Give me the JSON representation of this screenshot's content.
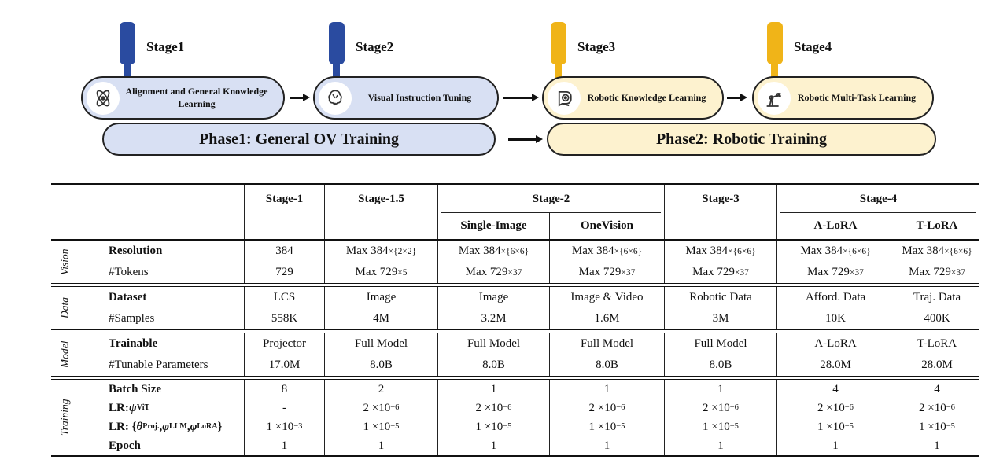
{
  "diagram": {
    "stages": [
      {
        "pin": "Stage1",
        "title": "Alignment and General Knowledge Learning",
        "icon": "atom-icon",
        "pin_color": "#2a4ba0",
        "fill": "#d8e0f3"
      },
      {
        "pin": "Stage2",
        "title": "Visual Instruction Tuning",
        "icon": "brain-icon",
        "pin_color": "#2a4ba0",
        "fill": "#d8e0f3"
      },
      {
        "pin": "Stage3",
        "title": "Robotic Knowledge Learning",
        "icon": "robot-head-icon",
        "pin_color": "#f0b418",
        "fill": "#fdf2cf"
      },
      {
        "pin": "Stage4",
        "title": "Robotic Multi-Task Learning",
        "icon": "robot-arm-icon",
        "pin_color": "#f0b418",
        "fill": "#fdf2cf"
      }
    ],
    "phases": [
      {
        "title": "Phase1: General OV Training",
        "fill": "#d8e0f3"
      },
      {
        "title": "Phase2: Robotic Training",
        "fill": "#fdf2cf"
      }
    ]
  },
  "table": {
    "header": {
      "top": [
        {
          "label": "Stage-1",
          "span": 1,
          "underline": false
        },
        {
          "label": "Stage-1.5",
          "span": 1,
          "underline": false
        },
        {
          "label": "Stage-2",
          "span": 2,
          "underline": true
        },
        {
          "label": "Stage-3",
          "span": 1,
          "underline": false
        },
        {
          "label": "Stage-4",
          "span": 2,
          "underline": true
        }
      ],
      "sub": [
        "",
        "",
        "Single-Image",
        "OneVision",
        "",
        "A-LoRA",
        "T-LoRA"
      ]
    },
    "groups": [
      {
        "name": "Vision",
        "rows": [
          {
            "label": "Resolution",
            "bold": true,
            "values": [
              "384",
              "Max 384⟦×{2×2}⟧",
              "Max 384⟦×{6×6}⟧",
              "Max 384⟦×{6×6}⟧",
              "Max 384⟦×{6×6}⟧",
              "Max 384⟦×{6×6}⟧",
              "Max 384⟦×{6×6}⟧"
            ]
          },
          {
            "label": "#Tokens",
            "bold": false,
            "values": [
              "729",
              "Max 729⟦×5⟧",
              "Max 729⟦×37⟧",
              "Max 729⟦×37⟧",
              "Max 729⟦×37⟧",
              "Max 729⟦×37⟧",
              "Max 729⟦×37⟧"
            ]
          }
        ]
      },
      {
        "name": "Data",
        "rows": [
          {
            "label": "Dataset",
            "bold": true,
            "values": [
              "LCS",
              "Image",
              "Image",
              "Image & Video",
              "Robotic Data",
              "Afford. Data",
              "Traj. Data"
            ]
          },
          {
            "label": "#Samples",
            "bold": false,
            "values": [
              "558K",
              "4M",
              "3.2M",
              "1.6M",
              "3M",
              "10K",
              "400K"
            ]
          }
        ]
      },
      {
        "name": "Model",
        "rows": [
          {
            "label": "Trainable",
            "bold": true,
            "values": [
              "Projector",
              "Full Model",
              "Full Model",
              "Full Model",
              "Full Model",
              "A-LoRA",
              "T-LoRA"
            ]
          },
          {
            "label": "#Tunable Parameters",
            "bold": false,
            "values": [
              "17.0M",
              "8.0B",
              "8.0B",
              "8.0B",
              "8.0B",
              "28.0M",
              "28.0M"
            ]
          }
        ]
      },
      {
        "name": "Training",
        "rows": [
          {
            "label": "Batch Size",
            "bold": true,
            "values": [
              "8",
              "2",
              "1",
              "1",
              "1",
              "4",
              "4"
            ]
          },
          {
            "label": "LR: ψ↓ViT↓",
            "bold": true,
            "values": [
              "-",
              "2 ×10^{−6}",
              "2 ×10^{−6}",
              "2 ×10^{−6}",
              "2 ×10^{−6}",
              "2 ×10^{−6}",
              "2 ×10^{−6}"
            ]
          },
          {
            "label": "LR: {θ↓Proj.↓, φ↓LLM↓, φ↓LoRA↓}",
            "bold": true,
            "values": [
              "1 ×10^{−3}",
              "1 ×10^{−5}",
              "1 ×10^{−5}",
              "1 ×10^{−5}",
              "1 ×10^{−5}",
              "1 ×10^{−5}",
              "1 ×10^{−5}"
            ]
          },
          {
            "label": "Epoch",
            "bold": true,
            "values": [
              "1",
              "1",
              "1",
              "1",
              "1",
              "1",
              "1"
            ]
          }
        ]
      }
    ]
  }
}
